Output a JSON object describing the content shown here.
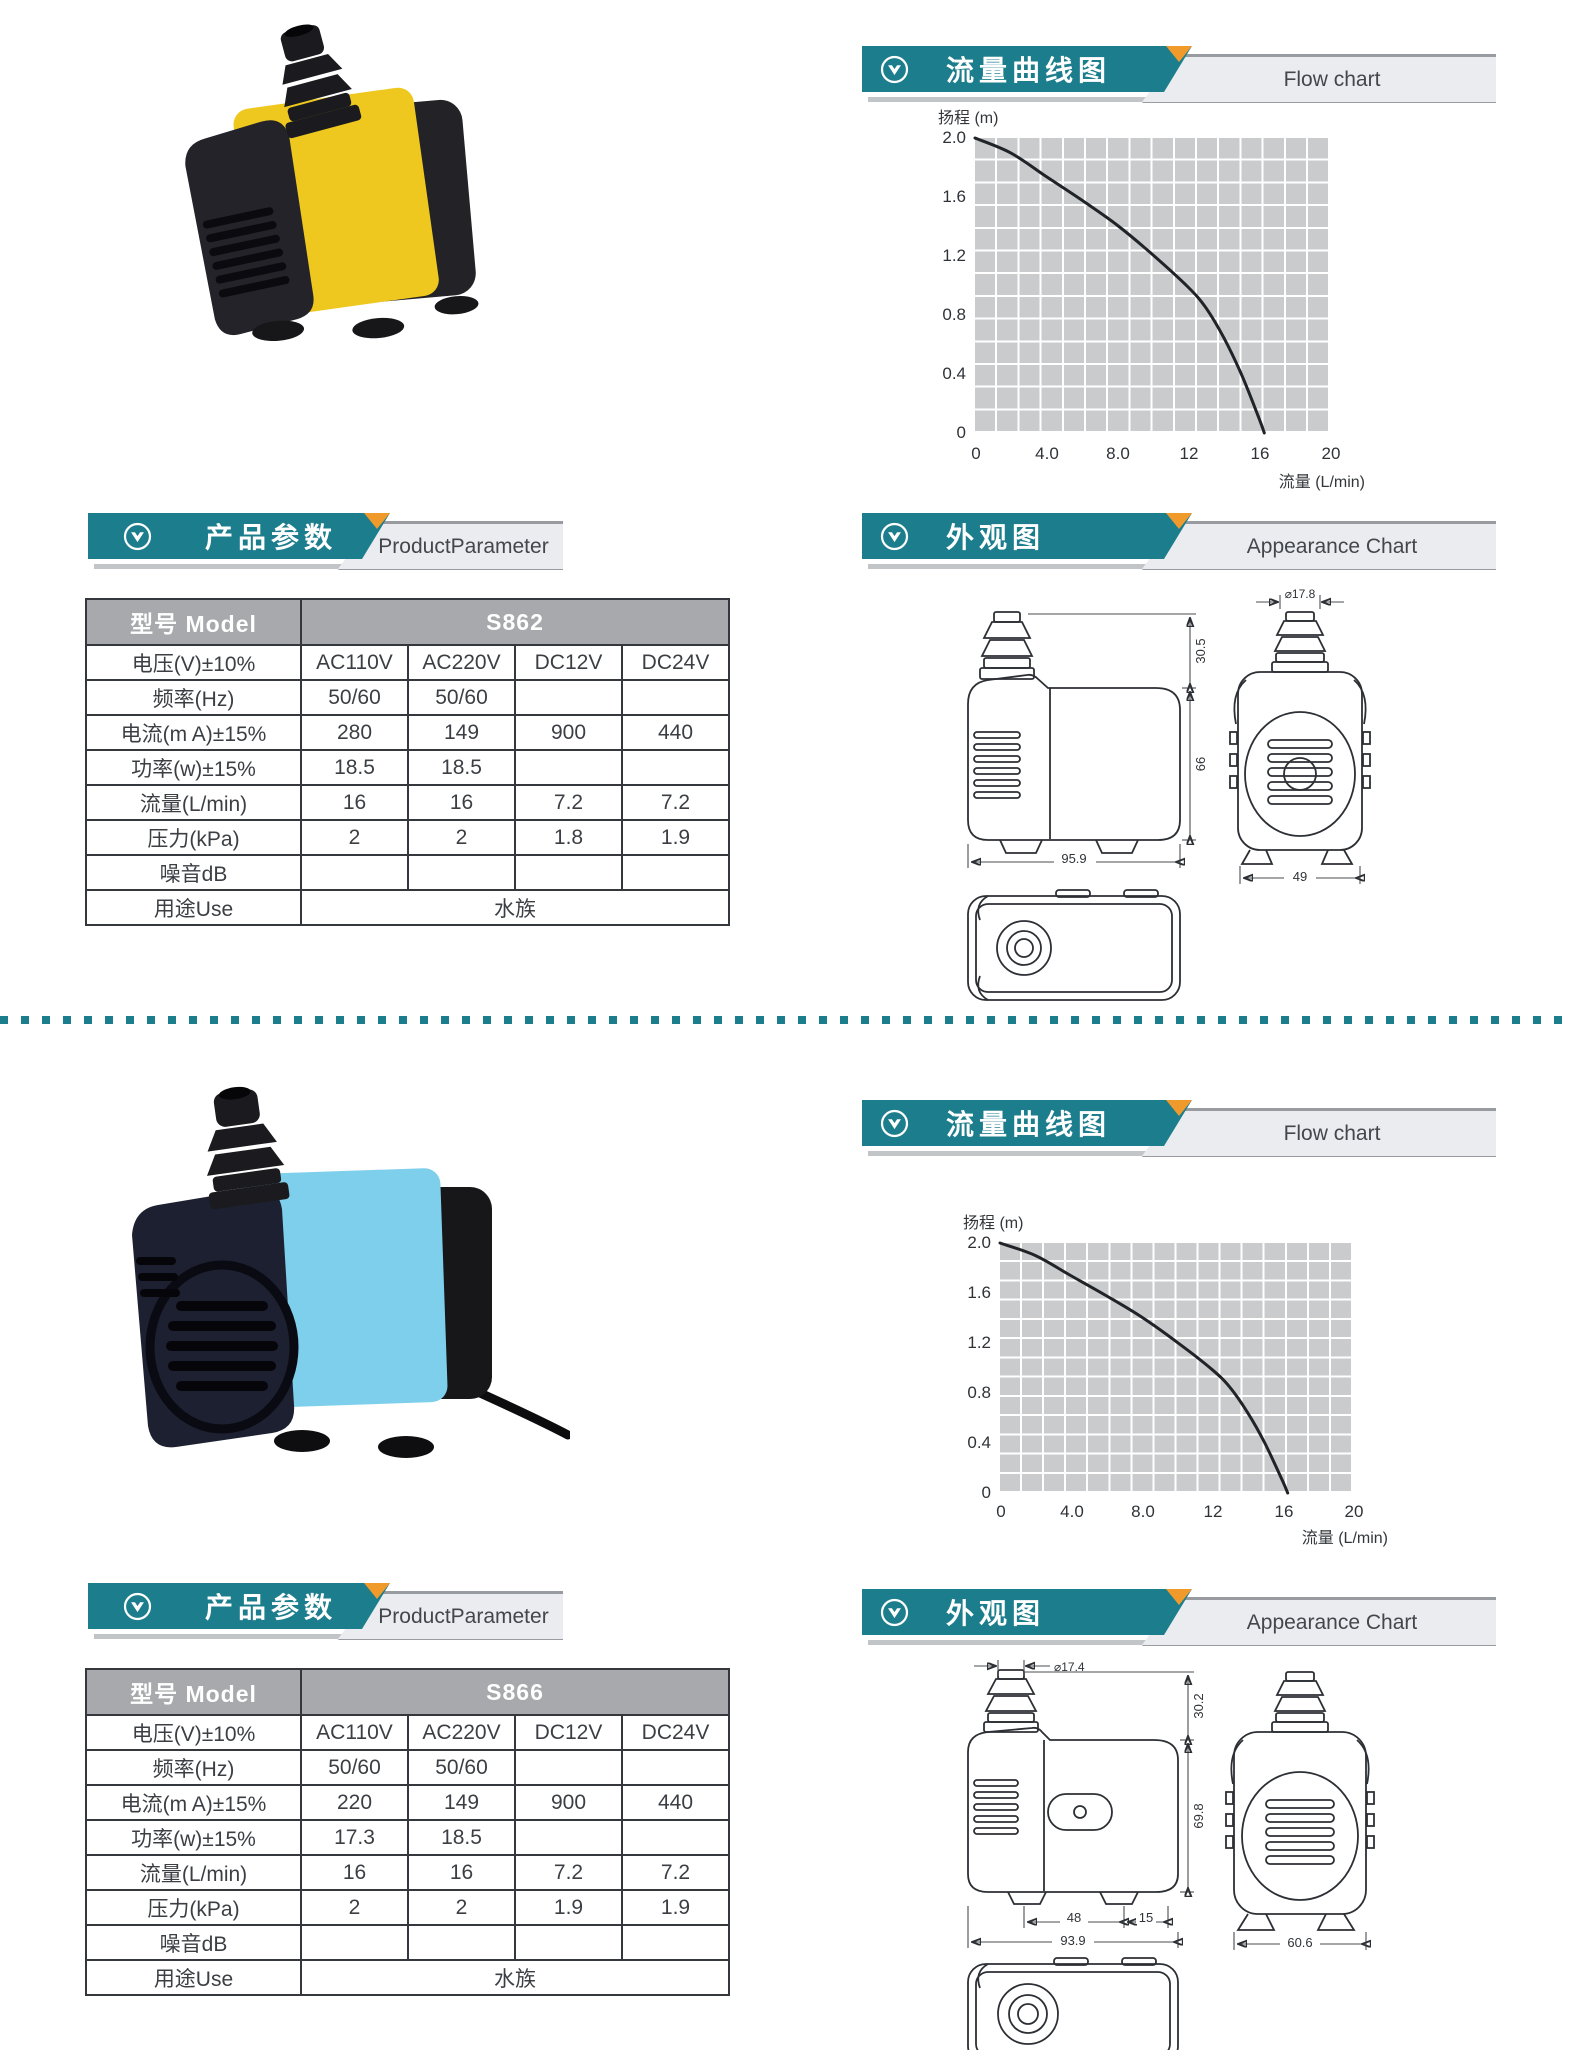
{
  "colors": {
    "teal": "#1c7d8c",
    "orange": "#f09a2c",
    "ribbon_gray": "#eaecef",
    "table_header_gray": "#a7a9ac",
    "plot_gray": "#c9cbcd",
    "curve": "#202428",
    "pump_yellow": "#eec81e",
    "pump_blue": "#7ecfec"
  },
  "divider": {
    "style": "teal-dotted-line"
  },
  "sections": [
    {
      "photo": "yellow-black-submersible-pump",
      "flow": {
        "title_cn": "流量曲线图",
        "title_en": "Flow chart"
      },
      "params": {
        "title_cn": "产品参数",
        "title_en": "ProductParameter"
      },
      "appearance": {
        "title_cn": "外观图",
        "title_en": "Appearance Chart"
      },
      "table": {
        "model_label": "型号 Model",
        "model": "S862",
        "rows": [
          {
            "label": "电压(V)±10%",
            "values": [
              "AC110V",
              "AC220V",
              "DC12V",
              "DC24V"
            ]
          },
          {
            "label": "频率(Hz)",
            "values": [
              "50/60",
              "50/60",
              "",
              ""
            ]
          },
          {
            "label": "电流(m A)±15%",
            "values": [
              "280",
              "149",
              "900",
              "440"
            ]
          },
          {
            "label": "功率(w)±15%",
            "values": [
              "18.5",
              "18.5",
              "",
              ""
            ]
          },
          {
            "label": "流量(L/min)",
            "values": [
              "16",
              "16",
              "7.2",
              "7.2"
            ]
          },
          {
            "label": "压力(kPa)",
            "values": [
              "2",
              "2",
              "1.8",
              "1.9"
            ]
          },
          {
            "label": "噪音dB",
            "values": [
              "",
              "",
              "",
              ""
            ]
          }
        ],
        "use_label": "用途Use",
        "use_value": "水族"
      },
      "chart_data": {
        "type": "line",
        "title": "流量曲线图 Flow chart",
        "xlabel": "流量  (L/min)",
        "ylabel": "扬程  (m)",
        "xlim": [
          0,
          20
        ],
        "ylim": [
          0,
          2.0
        ],
        "xticks": [
          "0",
          "4.0",
          "8.0",
          "12",
          "16",
          "20"
        ],
        "yticks": [
          "2.0",
          "1.6",
          "1.2",
          "0.8",
          "0.4",
          "0"
        ],
        "grid": true,
        "legend": "none",
        "curve": [
          [
            0,
            2.0
          ],
          [
            2,
            1.9
          ],
          [
            4,
            1.74
          ],
          [
            6,
            1.58
          ],
          [
            8,
            1.41
          ],
          [
            10,
            1.21
          ],
          [
            12,
            0.99
          ],
          [
            13,
            0.85
          ],
          [
            14,
            0.65
          ],
          [
            15,
            0.4
          ],
          [
            16,
            0.1
          ],
          [
            16.3,
            0
          ]
        ]
      },
      "dims": {
        "nozzle_dia": "⌀17.8",
        "spout_h": "30.5",
        "body_h": "66",
        "length": "95.9",
        "front_w": "49"
      }
    },
    {
      "photo": "blue-black-submersible-pump-with-cable",
      "flow": {
        "title_cn": "流量曲线图",
        "title_en": "Flow chart"
      },
      "params": {
        "title_cn": "产品参数",
        "title_en": "ProductParameter"
      },
      "appearance": {
        "title_cn": "外观图",
        "title_en": "Appearance Chart"
      },
      "table": {
        "model_label": "型号 Model",
        "model": "S866",
        "rows": [
          {
            "label": "电压(V)±10%",
            "values": [
              "AC110V",
              "AC220V",
              "DC12V",
              "DC24V"
            ]
          },
          {
            "label": "频率(Hz)",
            "values": [
              "50/60",
              "50/60",
              "",
              ""
            ]
          },
          {
            "label": "电流(m A)±15%",
            "values": [
              "220",
              "149",
              "900",
              "440"
            ]
          },
          {
            "label": "功率(w)±15%",
            "values": [
              "17.3",
              "18.5",
              "",
              ""
            ]
          },
          {
            "label": "流量(L/min)",
            "values": [
              "16",
              "16",
              "7.2",
              "7.2"
            ]
          },
          {
            "label": "压力(kPa)",
            "values": [
              "2",
              "2",
              "1.9",
              "1.9"
            ]
          },
          {
            "label": "噪音dB",
            "values": [
              "",
              "",
              "",
              ""
            ]
          }
        ],
        "use_label": "用途Use",
        "use_value": "水族"
      },
      "chart_data": {
        "type": "line",
        "title": "流量曲线图 Flow chart",
        "xlabel": "流量  (L/min)",
        "ylabel": "扬程  (m)",
        "xlim": [
          0,
          20
        ],
        "ylim": [
          0,
          2.0
        ],
        "xticks": [
          "0",
          "4.0",
          "8.0",
          "12",
          "16",
          "20"
        ],
        "yticks": [
          "2.0",
          "1.6",
          "1.2",
          "0.8",
          "0.4",
          "0"
        ],
        "grid": true,
        "legend": "none",
        "curve": [
          [
            0,
            2.0
          ],
          [
            2,
            1.9
          ],
          [
            4,
            1.74
          ],
          [
            6,
            1.58
          ],
          [
            8,
            1.41
          ],
          [
            10,
            1.21
          ],
          [
            12,
            0.99
          ],
          [
            13,
            0.85
          ],
          [
            14,
            0.65
          ],
          [
            15,
            0.4
          ],
          [
            16,
            0.1
          ],
          [
            16.3,
            0
          ]
        ]
      },
      "dims": {
        "nozzle_dia": "⌀17.4",
        "spout_h": "30.2",
        "body_h": "69.8",
        "length": "93.9",
        "front_w": "60.6",
        "foot_span": "48",
        "foot_edge": "15"
      }
    }
  ]
}
